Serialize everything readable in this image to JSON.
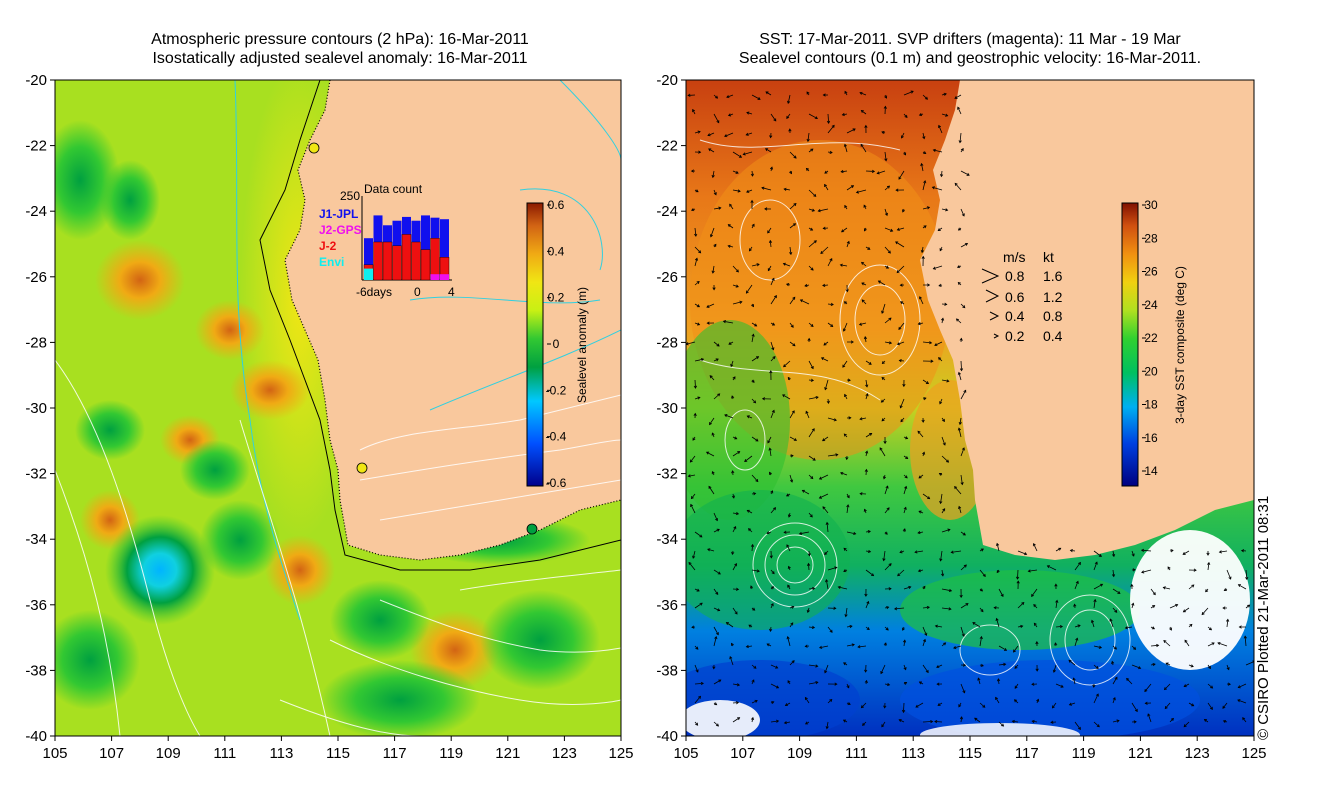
{
  "left_panel": {
    "title_line1": "Atmospheric pressure contours (2 hPa): 16-Mar-2011",
    "title_line2": "Isostatically adjusted sealevel anomaly: 16-Mar-2011",
    "lat_ticks": [
      "-20",
      "-22",
      "-24",
      "-26",
      "-28",
      "-30",
      "-32",
      "-34",
      "-36",
      "-38",
      "-40"
    ],
    "lon_ticks": [
      "105",
      "107",
      "109",
      "111",
      "113",
      "115",
      "117",
      "119",
      "121",
      "123",
      "125"
    ],
    "colorbar": {
      "label": "Sealevel anomaly (m)",
      "ticks": [
        "0.6",
        "0.4",
        "0.2",
        "0",
        "-0.2",
        "-0.4",
        "-0.6"
      ]
    },
    "inset": {
      "title": "Data count",
      "max_label": "250",
      "x_labels": [
        "-6days",
        "0",
        "4"
      ],
      "legend": [
        {
          "name": "J1-JPL",
          "color": "#1010ee"
        },
        {
          "name": "J2-GPS",
          "color": "#ee10ee"
        },
        {
          "name": "J-2",
          "color": "#ee1010"
        },
        {
          "name": "Envi",
          "color": "#10eeee"
        }
      ],
      "bars": [
        {
          "blue": 0.55,
          "red": 0.2,
          "cyan": 0.15,
          "magenta": 0
        },
        {
          "blue": 0.85,
          "red": 0.5,
          "cyan": 0,
          "magenta": 0
        },
        {
          "blue": 0.72,
          "red": 0.5,
          "cyan": 0,
          "magenta": 0
        },
        {
          "blue": 0.78,
          "red": 0.45,
          "cyan": 0,
          "magenta": 0
        },
        {
          "blue": 0.83,
          "red": 0.6,
          "cyan": 0,
          "magenta": 0
        },
        {
          "blue": 0.78,
          "red": 0.5,
          "cyan": 0,
          "magenta": 0
        },
        {
          "blue": 0.85,
          "red": 0.4,
          "cyan": 0,
          "magenta": 0
        },
        {
          "blue": 0.82,
          "red": 0.55,
          "cyan": 0,
          "magenta": 0.05
        },
        {
          "blue": 0.8,
          "red": 0.3,
          "cyan": 0,
          "magenta": 0.05
        }
      ]
    }
  },
  "right_panel": {
    "title_line1": "SST: 17-Mar-2011. SVP drifters (magenta): 11 Mar - 19 Mar",
    "title_line2": "Sealevel contours (0.1 m) and geostrophic velocity: 16-Mar-2011.",
    "lat_ticks": [
      "-20",
      "-22",
      "-24",
      "-26",
      "-28",
      "-30",
      "-32",
      "-34",
      "-36",
      "-38",
      "-40"
    ],
    "lon_ticks": [
      "105",
      "107",
      "109",
      "111",
      "113",
      "115",
      "117",
      "119",
      "121",
      "123",
      "125"
    ],
    "colorbar": {
      "label": "3-day SST composite (deg C)",
      "ticks": [
        "30",
        "28",
        "26",
        "24",
        "22",
        "20",
        "18",
        "16",
        "14"
      ]
    },
    "velocity_legend": {
      "header_ms": "m/s",
      "header_kt": "kt",
      "rows": [
        {
          "ms": "0.8",
          "kt": "1.6"
        },
        {
          "ms": "0.6",
          "kt": "1.2"
        },
        {
          "ms": "0.4",
          "kt": "0.8"
        },
        {
          "ms": "0.2",
          "kt": "0.4"
        }
      ]
    }
  },
  "copyright": "© CSIRO Plotted 21-Mar-2011 08:31",
  "colors": {
    "land": "#f9c89d",
    "sla_scale": [
      "#00008b",
      "#0050ff",
      "#00c8ff",
      "#00a040",
      "#32c832",
      "#c8f014",
      "#f0e614",
      "#f0aa14",
      "#d26414",
      "#8b1a00"
    ],
    "sst_scale": [
      "#000080",
      "#0040e0",
      "#00b0f0",
      "#00c060",
      "#30d030",
      "#b0e020",
      "#f0d010",
      "#f09010",
      "#d05010",
      "#801000"
    ]
  }
}
